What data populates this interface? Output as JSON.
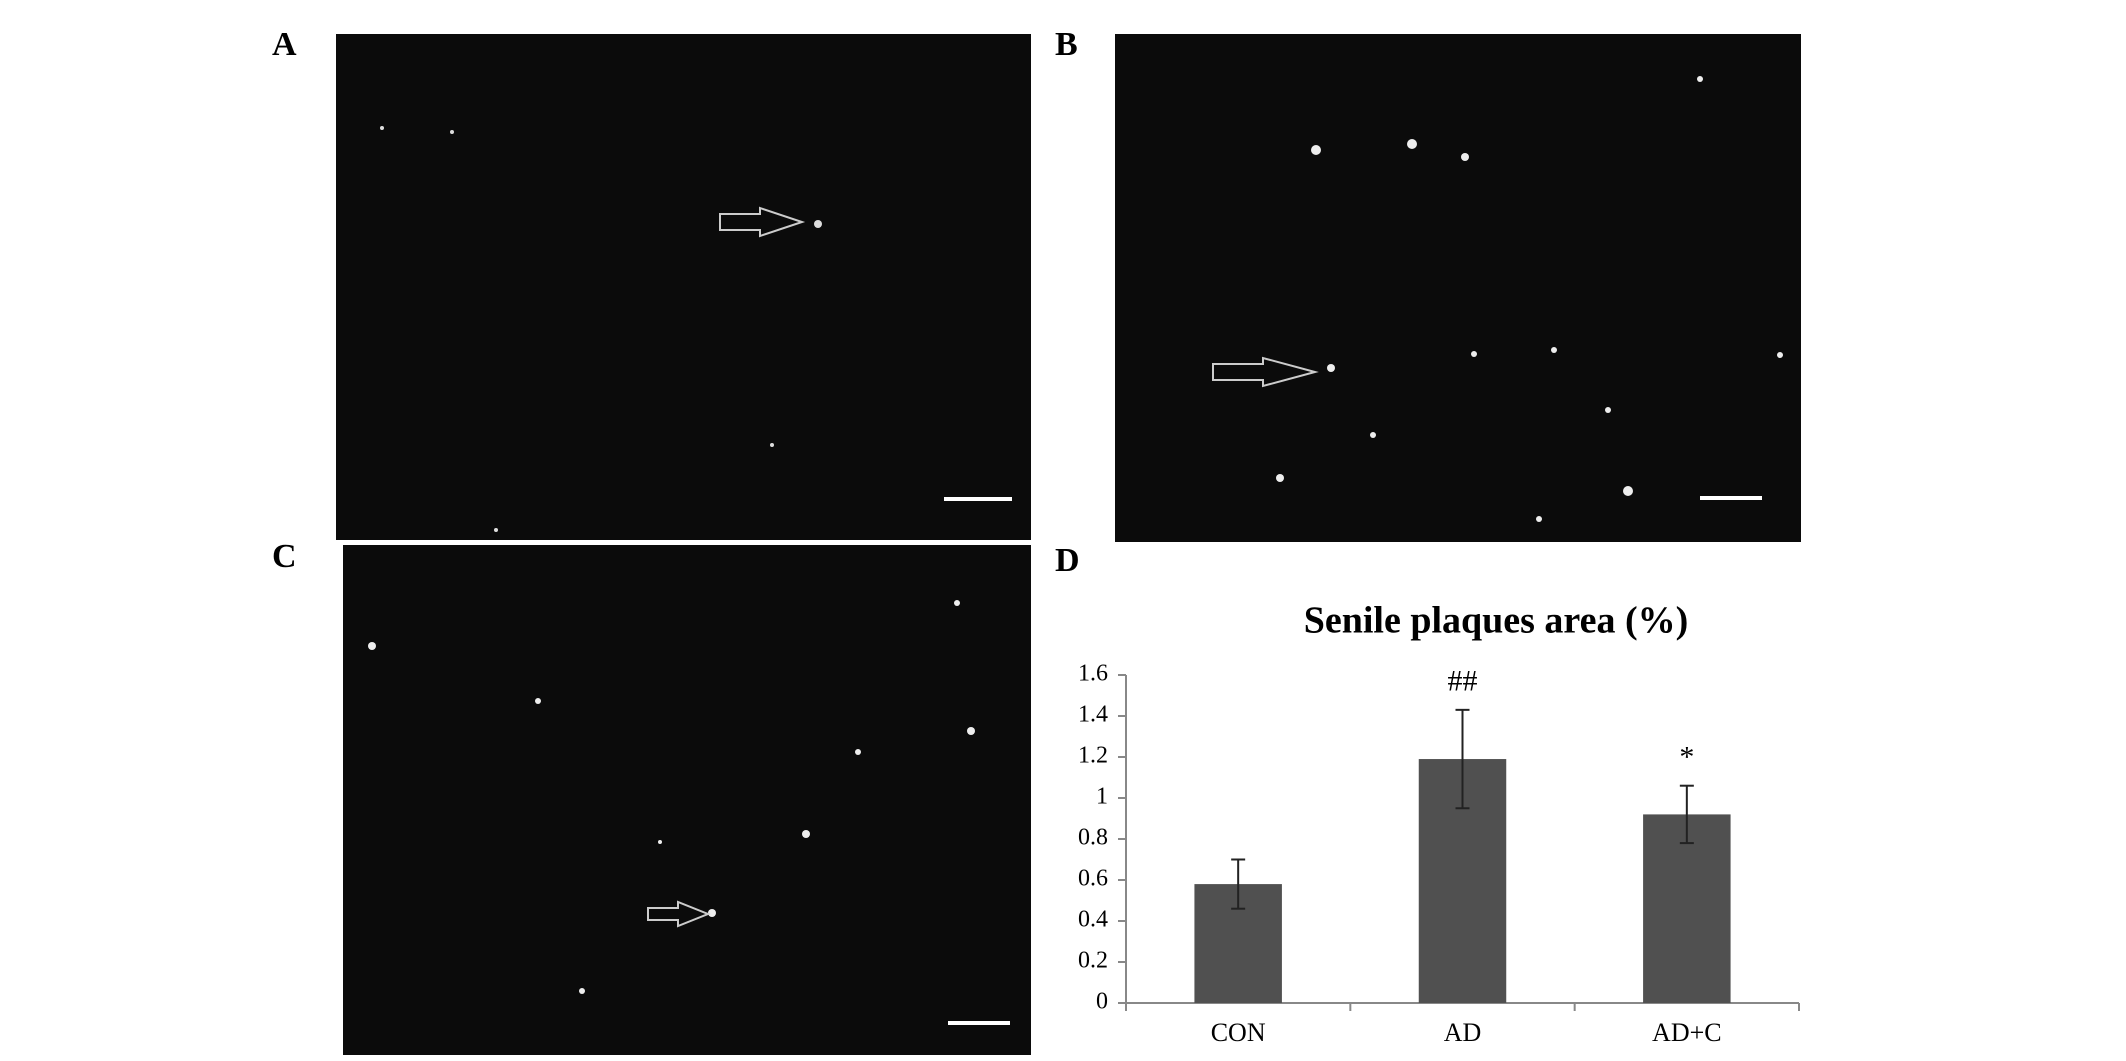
{
  "panels": {
    "a": "A",
    "b": "B",
    "c": "C",
    "d": "D"
  },
  "chart_data": {
    "type": "bar",
    "title": "Senile plaques area (%)",
    "categories": [
      "CON",
      "AD",
      "AD+C"
    ],
    "values": [
      0.58,
      1.19,
      0.92
    ],
    "errors": [
      0.12,
      0.24,
      0.14
    ],
    "annotations": [
      null,
      "##",
      "*"
    ],
    "color": "#505050",
    "ylim": [
      0,
      1.6
    ],
    "yticks": [
      0,
      0.2,
      0.4,
      0.6,
      0.8,
      1,
      1.2,
      1.4,
      1.6
    ]
  }
}
